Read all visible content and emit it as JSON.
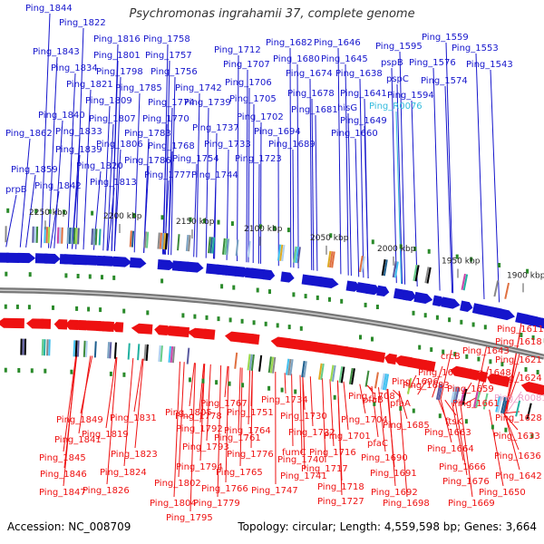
{
  "title": "Psychromonas ingrahamii 37, complete genome",
  "footer": {
    "accession": "Accession: NC_008709",
    "topology": "Topology: circular; Length: 4,559,598 bp; Genes: 3,664"
  },
  "colors": {
    "forward": "#1515cc",
    "reverse": "#ee1111",
    "rna": "#33bbdd",
    "pseudo": "#f0a0c8",
    "backbone": "#777777",
    "ticks": "#2a8a2a"
  },
  "scale_marks": [
    "2250 kbp",
    "2200 kbp",
    "2150 kbp",
    "2100 kbp",
    "2050 kbp",
    "2000 kbp",
    "1950 kbp",
    "1900 kbp"
  ],
  "top_labels": [
    {
      "text": "Ping_1844",
      "kind": "forward"
    },
    {
      "text": "Ping_1822",
      "kind": "forward"
    },
    {
      "text": "Ping_1816",
      "kind": "forward"
    },
    {
      "text": "Ping_1843",
      "kind": "forward"
    },
    {
      "text": "Ping_1834",
      "kind": "forward"
    },
    {
      "text": "Ping_1801",
      "kind": "forward"
    },
    {
      "text": "Ping_1758",
      "kind": "forward"
    },
    {
      "text": "Ping_1757",
      "kind": "forward"
    },
    {
      "text": "Ping_1712",
      "kind": "forward"
    },
    {
      "text": "Ping_1682",
      "kind": "forward"
    },
    {
      "text": "Ping_1646",
      "kind": "forward"
    },
    {
      "text": "Ping_1595",
      "kind": "forward"
    },
    {
      "text": "Ping_1559",
      "kind": "forward"
    },
    {
      "text": "Ping_1553",
      "kind": "forward"
    },
    {
      "text": "Ping_1543",
      "kind": "forward"
    },
    {
      "text": "Ping_1798",
      "kind": "forward"
    },
    {
      "text": "Ping_1756",
      "kind": "forward"
    },
    {
      "text": "Ping_1707",
      "kind": "forward"
    },
    {
      "text": "Ping_1680",
      "kind": "forward"
    },
    {
      "text": "Ping_1645",
      "kind": "forward"
    },
    {
      "text": "pspB",
      "kind": "forward"
    },
    {
      "text": "Ping_1576",
      "kind": "forward"
    },
    {
      "text": "Ping_1821",
      "kind": "forward"
    },
    {
      "text": "Ping_1785",
      "kind": "forward"
    },
    {
      "text": "Ping_1742",
      "kind": "forward"
    },
    {
      "text": "Ping_1706",
      "kind": "forward"
    },
    {
      "text": "Ping_1674",
      "kind": "forward"
    },
    {
      "text": "Ping_1638",
      "kind": "forward"
    },
    {
      "text": "pspC",
      "kind": "forward"
    },
    {
      "text": "Ping_1574",
      "kind": "forward"
    },
    {
      "text": "Ping_1809",
      "kind": "forward"
    },
    {
      "text": "Ping_1774",
      "kind": "forward"
    },
    {
      "text": "Ping_1739",
      "kind": "forward"
    },
    {
      "text": "Ping_1705",
      "kind": "forward"
    },
    {
      "text": "Ping_1678",
      "kind": "forward"
    },
    {
      "text": "Ping_1641",
      "kind": "forward"
    },
    {
      "text": "Ping_1594",
      "kind": "forward"
    },
    {
      "text": "Ping_1840",
      "kind": "forward"
    },
    {
      "text": "Ping_1807",
      "kind": "forward"
    },
    {
      "text": "Ping_1770",
      "kind": "forward"
    },
    {
      "text": "Ping_1702",
      "kind": "forward"
    },
    {
      "text": "Ping_1681",
      "kind": "forward"
    },
    {
      "text": "hisG",
      "kind": "forward"
    },
    {
      "text": "Ping_R0076",
      "kind": "rna"
    },
    {
      "text": "Ping_1862",
      "kind": "forward"
    },
    {
      "text": "Ping_1833",
      "kind": "forward"
    },
    {
      "text": "Ping_1806",
      "kind": "forward"
    },
    {
      "text": "Ping_1783",
      "kind": "forward"
    },
    {
      "text": "Ping_1737",
      "kind": "forward"
    },
    {
      "text": "Ping_1694",
      "kind": "forward"
    },
    {
      "text": "Ping_1649",
      "kind": "forward"
    },
    {
      "text": "Ping_1660",
      "kind": "forward"
    },
    {
      "text": "Ping_1839",
      "kind": "forward"
    },
    {
      "text": "Ping_1768",
      "kind": "forward"
    },
    {
      "text": "Ping_1733",
      "kind": "forward"
    },
    {
      "text": "Ping_1689",
      "kind": "forward"
    },
    {
      "text": "Ping_1786",
      "kind": "forward"
    },
    {
      "text": "Ping_1754",
      "kind": "forward"
    },
    {
      "text": "Ping_1723",
      "kind": "forward"
    },
    {
      "text": "Ping_1820",
      "kind": "forward"
    },
    {
      "text": "Ping_1859",
      "kind": "forward"
    },
    {
      "text": "Ping_1777",
      "kind": "forward"
    },
    {
      "text": "Ping_1744",
      "kind": "forward"
    },
    {
      "text": "Ping_1813",
      "kind": "forward"
    },
    {
      "text": "Ping_1842",
      "kind": "forward"
    },
    {
      "text": "prpB",
      "kind": "forward"
    }
  ],
  "bottom_labels": [
    {
      "text": "Ping_1611",
      "kind": "reverse"
    },
    {
      "text": "Ping_1618",
      "kind": "reverse"
    },
    {
      "text": "Ping_1643",
      "kind": "reverse"
    },
    {
      "text": "crcB",
      "kind": "reverse"
    },
    {
      "text": "Ping_1621",
      "kind": "reverse"
    },
    {
      "text": "Ping_1675",
      "kind": "reverse"
    },
    {
      "text": "Ping_1648",
      "kind": "reverse"
    },
    {
      "text": "Ping_1624",
      "kind": "reverse"
    },
    {
      "text": "Ping_1696",
      "kind": "reverse"
    },
    {
      "text": "Ping_1683",
      "kind": "reverse"
    },
    {
      "text": "Ping_1659",
      "kind": "reverse"
    },
    {
      "text": "Ping_R0081",
      "kind": "pseudo"
    },
    {
      "text": "Ping_1708",
      "kind": "reverse"
    },
    {
      "text": "pfaB",
      "kind": "reverse"
    },
    {
      "text": "pfaA",
      "kind": "reverse"
    },
    {
      "text": "Ping_1661",
      "kind": "reverse"
    },
    {
      "text": "Ping_1767",
      "kind": "reverse"
    },
    {
      "text": "Ping_1734",
      "kind": "reverse"
    },
    {
      "text": "Ping_1704",
      "kind": "reverse"
    },
    {
      "text": "Ping_1628",
      "kind": "reverse"
    },
    {
      "text": "Ping_1805",
      "kind": "reverse"
    },
    {
      "text": "Ping_1778",
      "kind": "reverse"
    },
    {
      "text": "Ping_1751",
      "kind": "reverse"
    },
    {
      "text": "Ping_1730",
      "kind": "reverse"
    },
    {
      "text": "Ping_1685",
      "kind": "reverse"
    },
    {
      "text": "ftsK",
      "kind": "reverse"
    },
    {
      "text": "Ping_1849",
      "kind": "reverse"
    },
    {
      "text": "Ping_1831",
      "kind": "reverse"
    },
    {
      "text": "Ping_1792",
      "kind": "reverse"
    },
    {
      "text": "Ping_1764",
      "kind": "reverse"
    },
    {
      "text": "Ping_1732",
      "kind": "reverse"
    },
    {
      "text": "Ping_1701",
      "kind": "reverse"
    },
    {
      "text": "Ping_1663",
      "kind": "reverse"
    },
    {
      "text": "Ping_1633",
      "kind": "reverse"
    },
    {
      "text": "Ping_1841",
      "kind": "reverse"
    },
    {
      "text": "Ping_1819",
      "kind": "reverse"
    },
    {
      "text": "Ping_1761",
      "kind": "reverse"
    },
    {
      "text": "fumC",
      "kind": "reverse"
    },
    {
      "text": "Ping_1716",
      "kind": "reverse"
    },
    {
      "text": "pfaC",
      "kind": "reverse"
    },
    {
      "text": "Ping_1664",
      "kind": "reverse"
    },
    {
      "text": "Ping_1793",
      "kind": "reverse"
    },
    {
      "text": "Ping_1776",
      "kind": "reverse"
    },
    {
      "text": "Ping_1740",
      "kind": "reverse"
    },
    {
      "text": "Ping_1690",
      "kind": "reverse"
    },
    {
      "text": "Ping_1636",
      "kind": "reverse"
    },
    {
      "text": "Ping_1845",
      "kind": "reverse"
    },
    {
      "text": "Ping_1823",
      "kind": "reverse"
    },
    {
      "text": "Ping_1794",
      "kind": "reverse"
    },
    {
      "text": "Ping_1717",
      "kind": "reverse"
    },
    {
      "text": "Ping_1666",
      "kind": "reverse"
    },
    {
      "text": "Ping_1765",
      "kind": "reverse"
    },
    {
      "text": "Ping_1741",
      "kind": "reverse"
    },
    {
      "text": "Ping_1691",
      "kind": "reverse"
    },
    {
      "text": "Ping_1676",
      "kind": "reverse"
    },
    {
      "text": "Ping_1846",
      "kind": "reverse"
    },
    {
      "text": "Ping_1824",
      "kind": "reverse"
    },
    {
      "text": "Ping_1718",
      "kind": "reverse"
    },
    {
      "text": "Ping_1642",
      "kind": "reverse"
    },
    {
      "text": "Ping_1826",
      "kind": "reverse"
    },
    {
      "text": "Ping_1802",
      "kind": "reverse"
    },
    {
      "text": "Ping_1766",
      "kind": "reverse"
    },
    {
      "text": "Ping_1747",
      "kind": "reverse"
    },
    {
      "text": "Ping_1692",
      "kind": "reverse"
    },
    {
      "text": "Ping_1650",
      "kind": "reverse"
    },
    {
      "text": "Ping_1847",
      "kind": "reverse"
    },
    {
      "text": "Ping_1727",
      "kind": "reverse"
    },
    {
      "text": "Ping_1698",
      "kind": "reverse"
    },
    {
      "text": "Ping_1669",
      "kind": "reverse"
    },
    {
      "text": "Ping_1804",
      "kind": "reverse"
    },
    {
      "text": "Ping_1779",
      "kind": "reverse"
    },
    {
      "text": "Ping_1795",
      "kind": "reverse"
    }
  ]
}
